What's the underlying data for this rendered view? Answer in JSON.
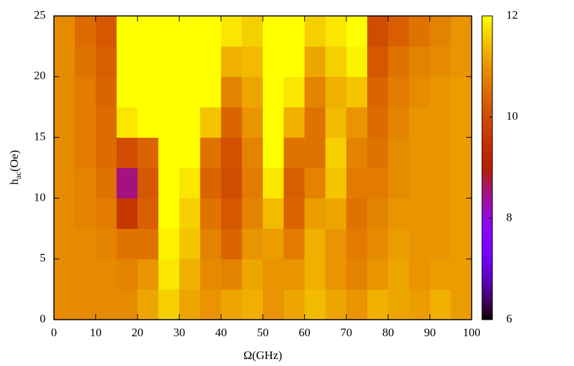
{
  "chart_data": {
    "type": "heatmap",
    "x_label": "Ω(GHz)",
    "y_label": {
      "base": "h",
      "sub": "ac",
      "unit": "(Oe)"
    },
    "xlim": [
      0,
      100
    ],
    "xticks": [
      0,
      10,
      20,
      30,
      40,
      50,
      60,
      70,
      80,
      90,
      100
    ],
    "ylim": [
      0,
      25
    ],
    "yticks": [
      0,
      5,
      10,
      15,
      20,
      25
    ],
    "zlim": [
      6,
      12
    ],
    "zticks": [
      6,
      8,
      10,
      12
    ],
    "x": [
      2.5,
      7.5,
      12.5,
      17.5,
      22.5,
      27.5,
      32.5,
      37.5,
      42.5,
      47.5,
      52.5,
      57.5,
      62.5,
      67.5,
      72.5,
      77.5,
      82.5,
      87.5,
      92.5,
      97.5
    ],
    "y": [
      1.25,
      3.75,
      6.25,
      8.75,
      11.25,
      13.75,
      16.25,
      18.75,
      21.25,
      23.75
    ],
    "z": [
      [
        10.9,
        10.9,
        10.9,
        10.9,
        11.2,
        11.6,
        11.2,
        11.0,
        11.2,
        11.3,
        11.0,
        11.2,
        11.4,
        11.2,
        11.0,
        11.3,
        11.2,
        11.1,
        11.3,
        11.1
      ],
      [
        10.9,
        10.9,
        10.9,
        10.8,
        11.0,
        11.8,
        11.3,
        10.9,
        10.8,
        11.2,
        11.0,
        11.0,
        11.3,
        11.0,
        10.8,
        11.0,
        11.2,
        11.0,
        11.1,
        11.1
      ],
      [
        10.9,
        10.9,
        10.8,
        10.6,
        10.6,
        11.9,
        11.5,
        10.8,
        10.4,
        11.0,
        11.1,
        10.7,
        11.3,
        11.0,
        10.7,
        10.9,
        11.1,
        11.0,
        11.0,
        11.1
      ],
      [
        10.9,
        10.8,
        10.7,
        9.6,
        10.3,
        12,
        11.6,
        10.6,
        10.2,
        10.8,
        11.4,
        10.4,
        11.1,
        11.2,
        10.6,
        10.8,
        11.0,
        11.0,
        11.0,
        11.1
      ],
      [
        10.9,
        10.8,
        10.6,
        8.5,
        10.2,
        12,
        11.8,
        10.4,
        10.0,
        10.7,
        11.8,
        10.3,
        10.8,
        11.5,
        10.7,
        10.7,
        10.9,
        11.0,
        11.0,
        11.1
      ],
      [
        10.9,
        10.7,
        10.5,
        10.0,
        10.4,
        12,
        12,
        10.6,
        10.1,
        10.8,
        12,
        10.6,
        10.6,
        11.6,
        10.8,
        10.6,
        10.9,
        11.0,
        11.0,
        11.1
      ],
      [
        10.9,
        10.7,
        10.5,
        11.8,
        12,
        12,
        12,
        11.5,
        10.4,
        11.0,
        12,
        11.3,
        10.6,
        11.4,
        11.0,
        10.5,
        10.8,
        11.0,
        11.0,
        11.1
      ],
      [
        10.9,
        10.7,
        10.4,
        12,
        12,
        12,
        12,
        12,
        10.8,
        11.2,
        12,
        11.8,
        10.8,
        11.3,
        11.5,
        10.4,
        10.7,
        10.9,
        11.0,
        11.1
      ],
      [
        10.9,
        10.6,
        10.3,
        12,
        12,
        12,
        12,
        12,
        11.3,
        11.4,
        12,
        12,
        11.2,
        11.6,
        11.9,
        10.2,
        10.6,
        10.8,
        10.9,
        11.0
      ],
      [
        10.9,
        10.5,
        10.2,
        12,
        12,
        12,
        12,
        12,
        11.8,
        11.6,
        12,
        12,
        11.6,
        11.8,
        12,
        10.0,
        10.3,
        10.6,
        10.8,
        11.0
      ]
    ]
  }
}
